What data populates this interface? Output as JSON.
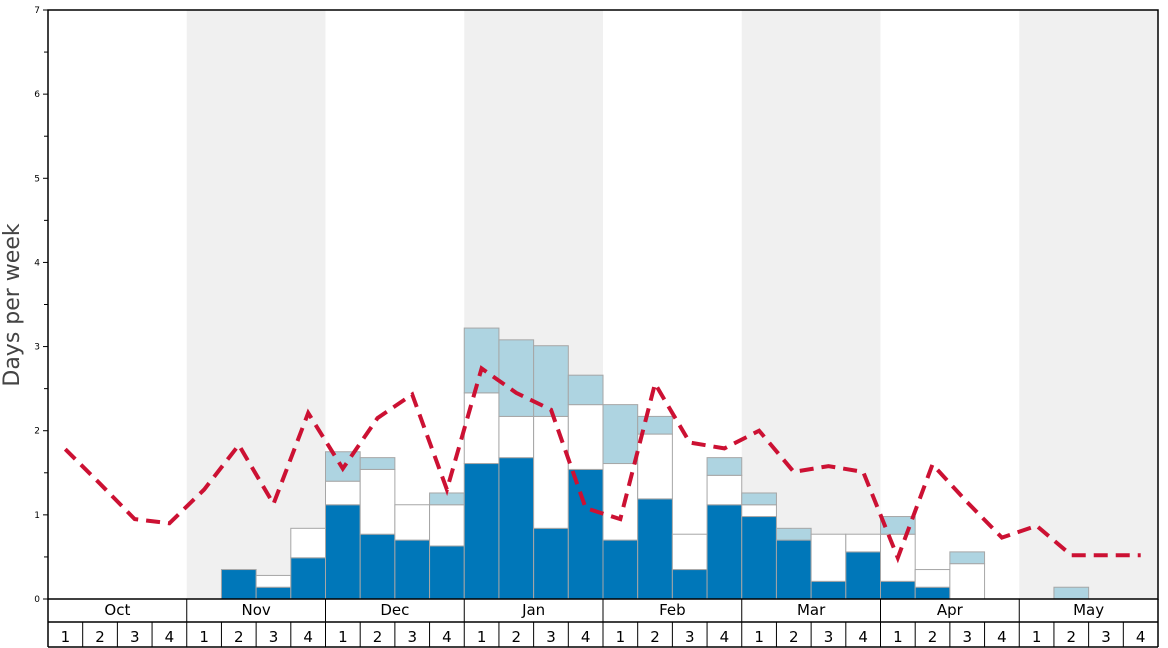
{
  "chart_data": {
    "type": "bar",
    "ylabel": "Days per week",
    "ylim": [
      0,
      7
    ],
    "yticks": [
      "0",
      "1",
      "2",
      "3",
      "4",
      "5",
      "6",
      "7"
    ],
    "months": [
      "Oct",
      "Nov",
      "Dec",
      "Jan",
      "Feb",
      "Mar",
      "Apr",
      "May"
    ],
    "week_labels": [
      "1",
      "2",
      "3",
      "4"
    ],
    "colors": {
      "series_bottom": "#0077b9",
      "series_middle": "#ffffff",
      "series_top": "#aed4e1",
      "line": "#cc1133",
      "shade": "#f0f0f0",
      "bar_stroke": "#a6a6a6"
    },
    "series": [
      {
        "values": [
          0,
          0,
          0,
          0,
          0,
          0.35,
          0.14,
          0.49,
          1.12,
          0.77,
          0.7,
          0.63,
          1.61,
          1.68,
          0.84,
          1.54,
          0.7,
          1.19,
          0.35,
          1.12,
          0.98,
          0.7,
          0.21,
          0.56,
          0.21,
          0.14,
          0,
          0,
          0,
          0,
          0,
          0
        ]
      },
      {
        "values": [
          0,
          0,
          0,
          0,
          0,
          0,
          0.14,
          0.35,
          0.28,
          0.77,
          0.42,
          0.49,
          0.84,
          0.49,
          1.33,
          0.77,
          0.91,
          0.77,
          0.42,
          0.35,
          0.14,
          0,
          0.56,
          0.21,
          0.56,
          0.21,
          0.42,
          0,
          0,
          0,
          0,
          0
        ]
      },
      {
        "values": [
          0,
          0,
          0,
          0,
          0,
          0,
          0,
          0,
          0.35,
          0.14,
          0,
          0.14,
          0.77,
          0.91,
          0.84,
          0.35,
          0.7,
          0.21,
          0,
          0.21,
          0.14,
          0.14,
          0,
          0,
          0.21,
          0,
          0.14,
          0,
          0,
          0.14,
          0,
          0
        ]
      },
      {
        "type": "line",
        "values": [
          1.78,
          1.37,
          0.95,
          0.9,
          1.3,
          1.83,
          1.13,
          2.21,
          1.55,
          2.15,
          2.43,
          1.3,
          2.74,
          2.45,
          2.25,
          1.08,
          0.95,
          2.56,
          1.86,
          1.79,
          2.0,
          1.51,
          1.58,
          1.51,
          0.49,
          1.6,
          1.15,
          0.73,
          0.87,
          0.52,
          0.52,
          0.52
        ]
      }
    ],
    "grid": false,
    "legend": "none"
  }
}
